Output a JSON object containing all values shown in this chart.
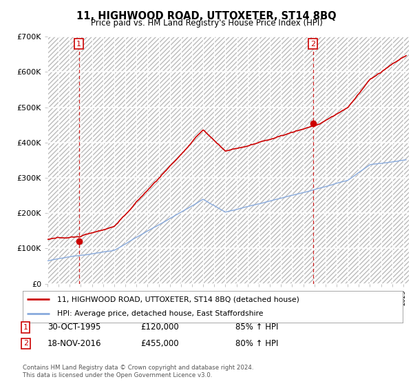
{
  "title": "11, HIGHWOOD ROAD, UTTOXETER, ST14 8BQ",
  "subtitle": "Price paid vs. HM Land Registry's House Price Index (HPI)",
  "xlim_start": 1993.0,
  "xlim_end": 2025.5,
  "ylim": [
    0,
    700000
  ],
  "yticks": [
    0,
    100000,
    200000,
    300000,
    400000,
    500000,
    600000,
    700000
  ],
  "ytick_labels": [
    "£0",
    "£100K",
    "£200K",
    "£300K",
    "£400K",
    "£500K",
    "£600K",
    "£700K"
  ],
  "sale1_date": 1995.83,
  "sale1_price": 120000,
  "sale2_date": 2016.88,
  "sale2_price": 455000,
  "property_line_color": "#cc0000",
  "hpi_line_color": "#88aadd",
  "vline_color": "#cc0000",
  "background_color": "#ffffff",
  "plot_bg_color": "#ffffff",
  "hatch_color": "#dddddd",
  "legend_label_property": "11, HIGHWOOD ROAD, UTTOXETER, ST14 8BQ (detached house)",
  "legend_label_hpi": "HPI: Average price, detached house, East Staffordshire",
  "ann1_label": "1",
  "ann1_date": "30-OCT-1995",
  "ann1_price": "£120,000",
  "ann1_hpi": "85% ↑ HPI",
  "ann2_label": "2",
  "ann2_date": "18-NOV-2016",
  "ann2_price": "£455,000",
  "ann2_hpi": "80% ↑ HPI",
  "footer": "Contains HM Land Registry data © Crown copyright and database right 2024.\nThis data is licensed under the Open Government Licence v3.0."
}
